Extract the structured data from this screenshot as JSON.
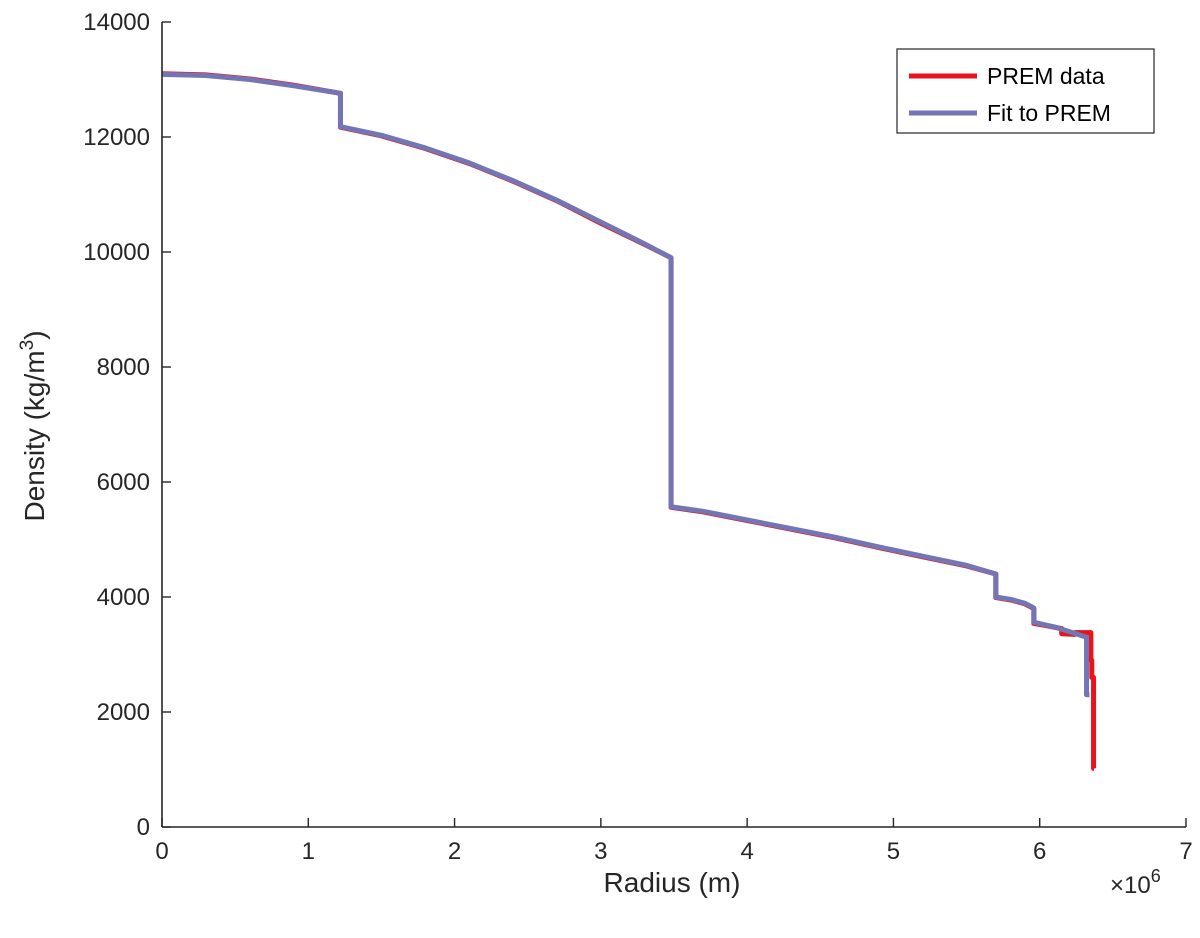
{
  "chart_data": {
    "type": "line",
    "title": "",
    "xlabel": "Radius (m)",
    "ylabel_parts": {
      "main": "Density (kg/m",
      "sup": "3",
      "close": ")"
    },
    "x_multiplier": {
      "base": "×10",
      "exp": "6"
    },
    "xlim": [
      0,
      7
    ],
    "ylim": [
      0,
      14000
    ],
    "x_ticks": [
      0,
      1,
      2,
      3,
      4,
      5,
      6,
      7
    ],
    "y_ticks": [
      0,
      2000,
      4000,
      6000,
      8000,
      10000,
      12000,
      14000
    ],
    "grid": false,
    "legend_position": "top-right",
    "series": [
      {
        "name": "PREM data",
        "color": "#e8131b",
        "points": [
          [
            0,
            13100
          ],
          [
            0.3,
            13080
          ],
          [
            0.6,
            13010
          ],
          [
            0.9,
            12900
          ],
          [
            1.22,
            12760
          ],
          [
            1.22,
            12170
          ],
          [
            1.5,
            12020
          ],
          [
            1.8,
            11800
          ],
          [
            2.1,
            11540
          ],
          [
            2.4,
            11230
          ],
          [
            2.7,
            10890
          ],
          [
            3.0,
            10500
          ],
          [
            3.3,
            10130
          ],
          [
            3.48,
            9900
          ],
          [
            3.48,
            5560
          ],
          [
            3.7,
            5480
          ],
          [
            4.0,
            5330
          ],
          [
            4.3,
            5180
          ],
          [
            4.6,
            5030
          ],
          [
            4.9,
            4860
          ],
          [
            5.2,
            4700
          ],
          [
            5.5,
            4540
          ],
          [
            5.7,
            4400
          ],
          [
            5.7,
            3990
          ],
          [
            5.8,
            3950
          ],
          [
            5.9,
            3880
          ],
          [
            5.96,
            3800
          ],
          [
            5.96,
            3540
          ],
          [
            6.05,
            3500
          ],
          [
            6.15,
            3450
          ],
          [
            6.15,
            3360
          ],
          [
            6.24,
            3350
          ],
          [
            6.24,
            3380
          ],
          [
            6.3,
            3380
          ],
          [
            6.35,
            3380
          ],
          [
            6.35,
            2900
          ],
          [
            6.356,
            2900
          ],
          [
            6.356,
            2600
          ],
          [
            6.368,
            2600
          ],
          [
            6.368,
            1020
          ],
          [
            6.371,
            1020
          ]
        ]
      },
      {
        "name": "Fit to PREM",
        "color": "#7375b5",
        "points": [
          [
            0,
            13090
          ],
          [
            0.3,
            13070
          ],
          [
            0.6,
            13000
          ],
          [
            0.9,
            12890
          ],
          [
            1.22,
            12760
          ],
          [
            1.22,
            12180
          ],
          [
            1.5,
            12030
          ],
          [
            1.8,
            11810
          ],
          [
            2.1,
            11550
          ],
          [
            2.4,
            11240
          ],
          [
            2.7,
            10900
          ],
          [
            3.0,
            10520
          ],
          [
            3.3,
            10140
          ],
          [
            3.48,
            9900
          ],
          [
            3.48,
            5570
          ],
          [
            3.7,
            5490
          ],
          [
            4.0,
            5340
          ],
          [
            4.3,
            5190
          ],
          [
            4.6,
            5040
          ],
          [
            4.9,
            4870
          ],
          [
            5.2,
            4710
          ],
          [
            5.5,
            4550
          ],
          [
            5.7,
            4400
          ],
          [
            5.7,
            4000
          ],
          [
            5.8,
            3960
          ],
          [
            5.9,
            3890
          ],
          [
            5.96,
            3810
          ],
          [
            5.96,
            3560
          ],
          [
            6.1,
            3480
          ],
          [
            6.2,
            3400
          ],
          [
            6.32,
            3300
          ],
          [
            6.32,
            2300
          ],
          [
            6.34,
            2300
          ]
        ]
      }
    ]
  }
}
